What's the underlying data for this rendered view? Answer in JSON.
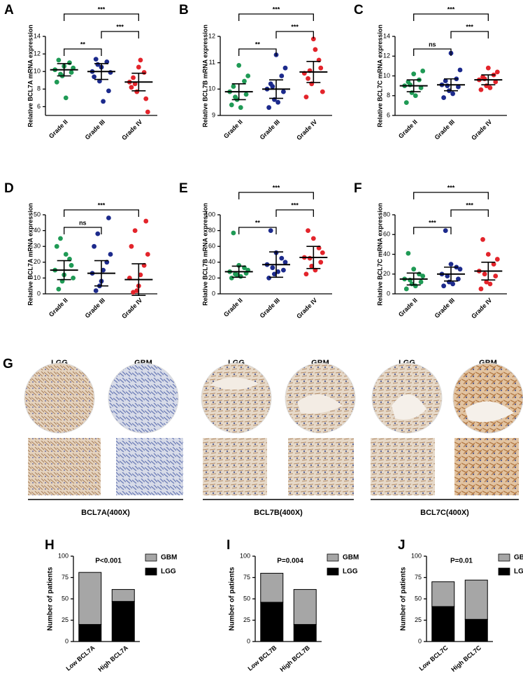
{
  "chart_data": [
    {
      "type": "strip",
      "panel": "A",
      "ylabel": "Relative BCL7A mRNA expression",
      "categories": [
        "Grade II",
        "Grade III",
        "Grade IV"
      ],
      "colors": [
        "#1f9a55",
        "#1c2a8c",
        "#e3242b"
      ],
      "points": [
        [
          10.2,
          9.5,
          11.0,
          8.8,
          10.6,
          9.9,
          11.3,
          7.0,
          10.4,
          9.7
        ],
        [
          10.0,
          8.9,
          11.1,
          9.4,
          10.5,
          7.8,
          11.4,
          6.6,
          9.9,
          10.8
        ],
        [
          8.8,
          7.7,
          9.9,
          8.2,
          10.5,
          6.9,
          9.3,
          11.3,
          5.4,
          8.6
        ]
      ],
      "mean": [
        10.2,
        10.0,
        8.8
      ],
      "sd": [
        0.7,
        0.9,
        1.0
      ],
      "ylim": [
        5,
        14
      ],
      "yticks": [
        6,
        8,
        10,
        12,
        14
      ],
      "comparisons": [
        {
          "from": "Grade II",
          "to": "Grade III",
          "label": "**"
        },
        {
          "from": "Grade III",
          "to": "Grade IV",
          "label": "***"
        },
        {
          "from": "Grade II",
          "to": "Grade IV",
          "label": "***"
        }
      ]
    },
    {
      "type": "strip",
      "panel": "B",
      "ylabel": "Relative BCL7B mRNA expression",
      "categories": [
        "Grade II",
        "Grade III",
        "Grade IV"
      ],
      "colors": [
        "#1f9a55",
        "#1c2a8c",
        "#e3242b"
      ],
      "points": [
        [
          9.9,
          9.6,
          10.3,
          9.4,
          10.9,
          9.8,
          10.1,
          9.3,
          10.5,
          9.7
        ],
        [
          10.0,
          9.6,
          10.5,
          9.3,
          11.3,
          9.9,
          10.2,
          9.5,
          10.8,
          10.1
        ],
        [
          10.6,
          10.2,
          11.1,
          9.7,
          11.9,
          10.8,
          10.4,
          11.5,
          9.9,
          10.7
        ]
      ],
      "mean": [
        9.9,
        10.0,
        10.65
      ],
      "sd": [
        0.3,
        0.35,
        0.4
      ],
      "ylim": [
        9,
        12
      ],
      "yticks": [
        9,
        10,
        11,
        12
      ],
      "comparisons": [
        {
          "from": "Grade II",
          "to": "Grade III",
          "label": "**"
        },
        {
          "from": "Grade III",
          "to": "Grade IV",
          "label": "***"
        },
        {
          "from": "Grade II",
          "to": "Grade IV",
          "label": "***"
        }
      ]
    },
    {
      "type": "strip",
      "panel": "C",
      "ylabel": "Relative BCL7C mRNA expression",
      "categories": [
        "Grade II",
        "Grade III",
        "Grade IV"
      ],
      "colors": [
        "#1f9a55",
        "#1c2a8c",
        "#e3242b"
      ],
      "points": [
        [
          9.0,
          8.3,
          9.6,
          7.3,
          10.2,
          8.8,
          9.4,
          8.0,
          10.5,
          9.1
        ],
        [
          9.1,
          8.5,
          9.7,
          7.8,
          12.3,
          8.9,
          9.5,
          8.2,
          10.6,
          9.0
        ],
        [
          9.6,
          9.0,
          10.1,
          8.6,
          10.8,
          9.4,
          9.9,
          8.8,
          10.4,
          9.7
        ]
      ],
      "mean": [
        9.0,
        9.1,
        9.6
      ],
      "sd": [
        0.6,
        0.6,
        0.5
      ],
      "ylim": [
        6,
        14
      ],
      "yticks": [
        6,
        8,
        10,
        12,
        14
      ],
      "comparisons": [
        {
          "from": "Grade II",
          "to": "Grade III",
          "label": "ns"
        },
        {
          "from": "Grade III",
          "to": "Grade IV",
          "label": "***"
        },
        {
          "from": "Grade II",
          "to": "Grade IV",
          "label": "***"
        }
      ]
    },
    {
      "type": "strip",
      "panel": "D",
      "ylabel": "Relative BCL7A mRNA expression",
      "categories": [
        "Grade II",
        "Grade III",
        "Grade IV"
      ],
      "colors": [
        "#1f9a55",
        "#1c2a8c",
        "#e3242b"
      ],
      "points": [
        [
          15,
          8,
          22,
          30,
          12,
          18,
          3,
          25,
          10,
          35
        ],
        [
          13,
          5,
          20,
          30,
          8,
          48,
          2,
          15,
          25,
          38
        ],
        [
          10,
          2,
          18,
          30,
          5,
          46,
          1,
          12,
          25,
          40
        ]
      ],
      "mean": [
        15,
        13,
        9
      ],
      "sd": [
        6,
        8,
        10
      ],
      "ylim": [
        0,
        50
      ],
      "yticks": [
        0,
        10,
        20,
        30,
        40,
        50
      ],
      "comparisons": [
        {
          "from": "Grade II",
          "to": "Grade III",
          "label": "ns"
        },
        {
          "from": "Grade II",
          "to": "Grade IV",
          "label": "***"
        }
      ]
    },
    {
      "type": "strip",
      "panel": "E",
      "ylabel": "Relative BCL7B mRNA expression",
      "categories": [
        "Grade II",
        "Grade III",
        "Grade IV"
      ],
      "colors": [
        "#1f9a55",
        "#1c2a8c",
        "#e3242b"
      ],
      "points": [
        [
          28,
          24,
          33,
          20,
          36,
          26,
          77,
          22,
          30,
          25
        ],
        [
          37,
          25,
          45,
          20,
          52,
          30,
          80,
          28,
          40,
          33
        ],
        [
          46,
          35,
          58,
          25,
          70,
          40,
          80,
          30,
          52,
          45
        ]
      ],
      "mean": [
        28,
        37,
        46
      ],
      "sd": [
        7,
        16,
        14
      ],
      "ylim": [
        0,
        100
      ],
      "yticks": [
        0,
        20,
        40,
        60,
        80,
        100
      ],
      "comparisons": [
        {
          "from": "Grade II",
          "to": "Grade III",
          "label": "**"
        },
        {
          "from": "Grade III",
          "to": "Grade IV",
          "label": "***"
        },
        {
          "from": "Grade II",
          "to": "Grade IV",
          "label": "***"
        }
      ]
    },
    {
      "type": "strip",
      "panel": "F",
      "ylabel": "Relative BCL7C mRNA expression",
      "categories": [
        "Grade II",
        "Grade III",
        "Grade IV"
      ],
      "colors": [
        "#1f9a55",
        "#1c2a8c",
        "#e3242b"
      ],
      "points": [
        [
          15,
          10,
          20,
          5,
          25,
          12,
          41,
          8,
          18,
          14
        ],
        [
          20,
          12,
          27,
          8,
          30,
          15,
          64,
          10,
          25,
          18
        ],
        [
          23,
          12,
          30,
          5,
          40,
          18,
          55,
          10,
          35,
          20
        ]
      ],
      "mean": [
        15,
        20,
        23
      ],
      "sd": [
        6,
        7,
        9
      ],
      "ylim": [
        0,
        80
      ],
      "yticks": [
        0,
        20,
        40,
        60,
        80
      ],
      "comparisons": [
        {
          "from": "Grade II",
          "to": "Grade III",
          "label": "***"
        },
        {
          "from": "Grade III",
          "to": "Grade IV",
          "label": "***"
        },
        {
          "from": "Grade II",
          "to": "Grade IV",
          "label": "***"
        }
      ]
    },
    {
      "type": "bar",
      "panel": "H",
      "ylabel": "Number of patients",
      "annotation": "P<0.001",
      "categories": [
        "Low BCL7A",
        "High BCL7A"
      ],
      "stacked": true,
      "legend": "upper right",
      "series": [
        {
          "name": "LGG",
          "color": "#000000",
          "values": [
            20,
            47
          ]
        },
        {
          "name": "GBM",
          "color": "#a6a6a6",
          "values": [
            61,
            14
          ]
        }
      ],
      "ylim": [
        0,
        100
      ],
      "yticks": [
        0,
        25,
        50,
        75,
        100
      ]
    },
    {
      "type": "bar",
      "panel": "I",
      "ylabel": "Number of patients",
      "annotation": "P=0.004",
      "categories": [
        "Low BCL7B",
        "High BCL7B"
      ],
      "stacked": true,
      "legend": "upper right",
      "series": [
        {
          "name": "LGG",
          "color": "#000000",
          "values": [
            46,
            20
          ]
        },
        {
          "name": "GBM",
          "color": "#a6a6a6",
          "values": [
            34,
            41
          ]
        }
      ],
      "ylim": [
        0,
        100
      ],
      "yticks": [
        0,
        25,
        50,
        75,
        100
      ]
    },
    {
      "type": "bar",
      "panel": "J",
      "ylabel": "Number of patients",
      "annotation": "P=0.01",
      "categories": [
        "Low BCL7C",
        "High BCL7C"
      ],
      "stacked": true,
      "legend": "upper right",
      "series": [
        {
          "name": "LGG",
          "color": "#000000",
          "values": [
            41,
            26
          ]
        },
        {
          "name": "GBM",
          "color": "#a6a6a6",
          "values": [
            29,
            46
          ]
        }
      ],
      "ylim": [
        0,
        100
      ],
      "yticks": [
        0,
        25,
        50,
        75,
        100
      ]
    }
  ],
  "ihc": {
    "panel": "G",
    "columns": [
      "LGG",
      "GBM",
      "LGG",
      "GBM",
      "LGG",
      "GBM"
    ],
    "markers": [
      "BCL7A(400X)",
      "BCL7B(400X)",
      "BCL7C(400X)"
    ]
  }
}
